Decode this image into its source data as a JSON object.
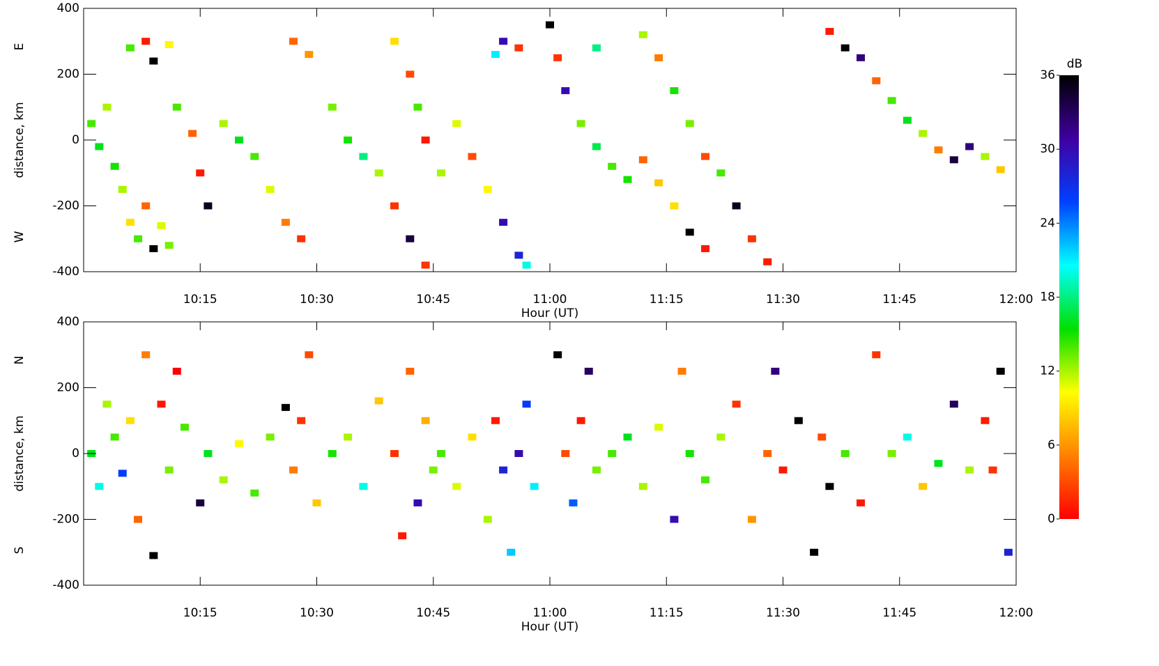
{
  "chart_data": [
    {
      "type": "scatter",
      "xlabel": "Hour (UT)",
      "ylabel": "distance, km",
      "side_labels": [
        "E",
        "W"
      ],
      "xlim": [
        600,
        720
      ],
      "xticks": [
        {
          "value": 615,
          "label": "10:15"
        },
        {
          "value": 630,
          "label": "10:30"
        },
        {
          "value": 645,
          "label": "10:45"
        },
        {
          "value": 660,
          "label": "11:00"
        },
        {
          "value": 675,
          "label": "11:15"
        },
        {
          "value": 690,
          "label": "11:30"
        },
        {
          "value": 705,
          "label": "11:45"
        },
        {
          "value": 720,
          "label": "12:00"
        }
      ],
      "ylim": [
        -400,
        400
      ],
      "yticks": [
        -400,
        -200,
        0,
        200,
        400
      ],
      "zlabel": "dB",
      "zlim": [
        0,
        36
      ],
      "zticks": [
        0,
        6,
        12,
        18,
        24,
        30,
        36
      ],
      "colormap": [
        "#ff0000",
        "#ff8000",
        "#ffff00",
        "#00e000",
        "#00ffff",
        "#0040ff",
        "#4000a0",
        "#000000"
      ],
      "points": [
        [
          601,
          50,
          14
        ],
        [
          602,
          -20,
          16
        ],
        [
          603,
          100,
          12
        ],
        [
          604,
          -80,
          15
        ],
        [
          605,
          -150,
          12
        ],
        [
          606,
          -250,
          9
        ],
        [
          607,
          -300,
          14
        ],
        [
          608,
          -200,
          4
        ],
        [
          609,
          -330,
          36
        ],
        [
          610,
          -260,
          11
        ],
        [
          611,
          -320,
          13
        ],
        [
          606,
          280,
          14
        ],
        [
          608,
          300,
          1
        ],
        [
          609,
          240,
          36
        ],
        [
          611,
          290,
          10
        ],
        [
          612,
          100,
          14
        ],
        [
          614,
          20,
          4
        ],
        [
          615,
          -100,
          1
        ],
        [
          616,
          -200,
          35
        ],
        [
          618,
          50,
          12
        ],
        [
          620,
          0,
          16
        ],
        [
          622,
          -50,
          14
        ],
        [
          624,
          -150,
          11
        ],
        [
          626,
          -250,
          5
        ],
        [
          628,
          -300,
          2
        ],
        [
          627,
          300,
          4
        ],
        [
          629,
          260,
          6
        ],
        [
          632,
          100,
          13
        ],
        [
          634,
          0,
          15
        ],
        [
          636,
          -50,
          18
        ],
        [
          638,
          -100,
          12
        ],
        [
          640,
          -200,
          2
        ],
        [
          642,
          -300,
          34
        ],
        [
          640,
          300,
          9
        ],
        [
          642,
          200,
          3
        ],
        [
          643,
          100,
          14
        ],
        [
          644,
          0,
          1
        ],
        [
          646,
          -100,
          12
        ],
        [
          648,
          50,
          11
        ],
        [
          650,
          -50,
          3
        ],
        [
          652,
          -150,
          10
        ],
        [
          654,
          -250,
          30
        ],
        [
          656,
          -350,
          28
        ],
        [
          657,
          -380,
          20
        ],
        [
          654,
          300,
          30
        ],
        [
          656,
          280,
          2
        ],
        [
          653,
          260,
          21
        ],
        [
          660,
          350,
          36
        ],
        [
          661,
          250,
          2
        ],
        [
          662,
          150,
          30
        ],
        [
          664,
          50,
          13
        ],
        [
          666,
          -20,
          17
        ],
        [
          668,
          -80,
          14
        ],
        [
          670,
          -120,
          15
        ],
        [
          672,
          -60,
          4
        ],
        [
          674,
          -130,
          8
        ],
        [
          676,
          -200,
          9
        ],
        [
          678,
          -280,
          36
        ],
        [
          680,
          -330,
          1
        ],
        [
          672,
          320,
          12
        ],
        [
          674,
          250,
          5
        ],
        [
          676,
          150,
          15
        ],
        [
          678,
          50,
          13
        ],
        [
          680,
          -50,
          3
        ],
        [
          682,
          -100,
          14
        ],
        [
          684,
          -200,
          35
        ],
        [
          686,
          -300,
          2
        ],
        [
          688,
          -370,
          1
        ],
        [
          696,
          330,
          1
        ],
        [
          698,
          280,
          36
        ],
        [
          700,
          250,
          32
        ],
        [
          702,
          180,
          4
        ],
        [
          704,
          120,
          14
        ],
        [
          706,
          60,
          16
        ],
        [
          708,
          20,
          12
        ],
        [
          710,
          -30,
          5
        ],
        [
          712,
          -60,
          34
        ],
        [
          714,
          -20,
          32
        ],
        [
          716,
          -50,
          12
        ],
        [
          718,
          -90,
          8
        ],
        [
          666,
          280,
          18
        ],
        [
          644,
          -380,
          2
        ]
      ]
    },
    {
      "type": "scatter",
      "xlabel": "Hour (UT)",
      "ylabel": "distance, km",
      "side_labels": [
        "N",
        "S"
      ],
      "xlim": [
        600,
        720
      ],
      "xticks": [
        {
          "value": 615,
          "label": "10:15"
        },
        {
          "value": 630,
          "label": "10:30"
        },
        {
          "value": 645,
          "label": "10:45"
        },
        {
          "value": 660,
          "label": "11:00"
        },
        {
          "value": 675,
          "label": "11:15"
        },
        {
          "value": 690,
          "label": "11:30"
        },
        {
          "value": 705,
          "label": "11:45"
        },
        {
          "value": 720,
          "label": "12:00"
        }
      ],
      "ylim": [
        -400,
        400
      ],
      "yticks": [
        -400,
        -200,
        0,
        200,
        400
      ],
      "points": [
        [
          601,
          0,
          16
        ],
        [
          602,
          -100,
          20
        ],
        [
          603,
          150,
          12
        ],
        [
          604,
          50,
          14
        ],
        [
          605,
          -60,
          26
        ],
        [
          606,
          100,
          9
        ],
        [
          607,
          -200,
          4
        ],
        [
          608,
          300,
          5
        ],
        [
          609,
          -310,
          36
        ],
        [
          610,
          150,
          1
        ],
        [
          611,
          -50,
          13
        ],
        [
          612,
          250,
          0
        ],
        [
          613,
          80,
          14
        ],
        [
          615,
          -150,
          34
        ],
        [
          616,
          0,
          16
        ],
        [
          618,
          -80,
          12
        ],
        [
          620,
          30,
          10
        ],
        [
          622,
          -120,
          14
        ],
        [
          624,
          50,
          13
        ],
        [
          626,
          140,
          36
        ],
        [
          627,
          -50,
          5
        ],
        [
          628,
          100,
          2
        ],
        [
          629,
          300,
          3
        ],
        [
          630,
          -150,
          8
        ],
        [
          632,
          0,
          15
        ],
        [
          634,
          50,
          12
        ],
        [
          636,
          -100,
          20
        ],
        [
          638,
          160,
          8
        ],
        [
          640,
          0,
          2
        ],
        [
          641,
          -250,
          1
        ],
        [
          642,
          250,
          4
        ],
        [
          643,
          -150,
          30
        ],
        [
          644,
          100,
          7
        ],
        [
          645,
          -50,
          13
        ],
        [
          646,
          0,
          14
        ],
        [
          648,
          -100,
          11
        ],
        [
          650,
          50,
          9
        ],
        [
          652,
          -200,
          12
        ],
        [
          653,
          100,
          1
        ],
        [
          654,
          -50,
          28
        ],
        [
          655,
          -300,
          22
        ],
        [
          656,
          0,
          30
        ],
        [
          657,
          150,
          26
        ],
        [
          658,
          -100,
          21
        ],
        [
          661,
          300,
          36
        ],
        [
          662,
          0,
          3
        ],
        [
          663,
          -150,
          25
        ],
        [
          664,
          100,
          1
        ],
        [
          665,
          250,
          33
        ],
        [
          666,
          -50,
          13
        ],
        [
          668,
          0,
          14
        ],
        [
          670,
          50,
          16
        ],
        [
          672,
          -100,
          12
        ],
        [
          674,
          80,
          11
        ],
        [
          676,
          -200,
          30
        ],
        [
          677,
          250,
          5
        ],
        [
          678,
          0,
          15
        ],
        [
          680,
          -80,
          14
        ],
        [
          682,
          50,
          12
        ],
        [
          684,
          150,
          2
        ],
        [
          686,
          -200,
          6
        ],
        [
          688,
          0,
          4
        ],
        [
          689,
          250,
          32
        ],
        [
          690,
          -50,
          1
        ],
        [
          692,
          100,
          36
        ],
        [
          694,
          -300,
          36
        ],
        [
          695,
          50,
          3
        ],
        [
          696,
          -100,
          36
        ],
        [
          698,
          0,
          14
        ],
        [
          700,
          -150,
          1
        ],
        [
          702,
          300,
          2
        ],
        [
          704,
          0,
          13
        ],
        [
          706,
          50,
          20
        ],
        [
          708,
          -100,
          8
        ],
        [
          710,
          -30,
          16
        ],
        [
          712,
          150,
          33
        ],
        [
          714,
          -50,
          12
        ],
        [
          716,
          100,
          1
        ],
        [
          718,
          250,
          36
        ],
        [
          719,
          -300,
          28
        ],
        [
          717,
          -50,
          2
        ]
      ]
    }
  ]
}
